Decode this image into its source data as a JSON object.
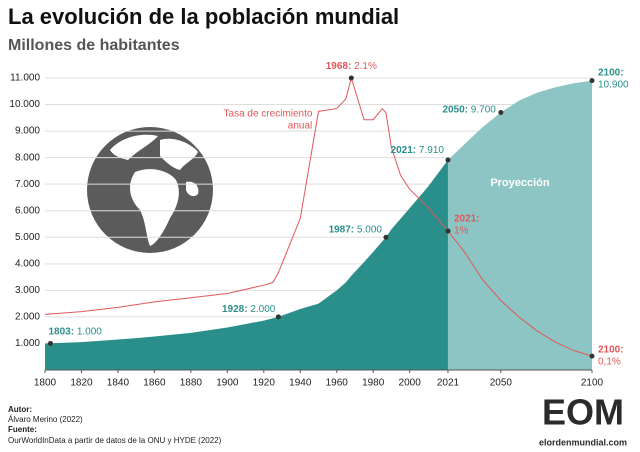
{
  "chart_data": {
    "type": "area",
    "title": "La evolución de la población mundial",
    "subtitle": "Millones de habitantes",
    "x": [
      1800,
      1820,
      1840,
      1850,
      1860,
      1880,
      1900,
      1920,
      1925,
      1928,
      1940,
      1950,
      1960,
      1965,
      1968,
      1975,
      1980,
      1985,
      1987,
      1990,
      1995,
      2000,
      2010,
      2021,
      2030,
      2040,
      2050,
      2060,
      2070,
      2080,
      2090,
      2100
    ],
    "population": {
      "color": "#2a8f8a",
      "values": [
        1000,
        1050,
        1150,
        1200,
        1260,
        1400,
        1600,
        1860,
        1950,
        2000,
        2300,
        2500,
        3000,
        3300,
        3550,
        4070,
        4450,
        4850,
        5000,
        5300,
        5700,
        6100,
        6900,
        7910,
        null,
        null,
        null,
        null,
        null,
        null,
        null,
        null
      ]
    },
    "projection": {
      "name": "Proyección",
      "color": "#8cc5c3",
      "values": [
        null,
        null,
        null,
        null,
        null,
        null,
        null,
        null,
        null,
        null,
        null,
        null,
        null,
        null,
        null,
        null,
        null,
        null,
        null,
        null,
        null,
        null,
        null,
        7910,
        8500,
        9150,
        9700,
        10150,
        10450,
        10650,
        10800,
        10900
      ]
    },
    "growth_rate": {
      "label_lines": [
        "Tasa de crecimiento",
        "anual"
      ],
      "color": "#e0585a",
      "axis": "y2",
      "values": [
        0.4,
        0.42,
        0.45,
        0.47,
        0.49,
        0.52,
        0.55,
        0.61,
        0.63,
        0.7,
        1.09,
        1.86,
        1.88,
        1.95,
        2.1,
        1.8,
        1.8,
        1.88,
        1.85,
        1.6,
        1.4,
        1.3,
        1.17,
        1.0,
        0.85,
        0.65,
        0.5,
        0.38,
        0.28,
        0.2,
        0.14,
        0.1
      ]
    },
    "xlim": [
      1800,
      2100
    ],
    "xticks": [
      1800,
      1820,
      1840,
      1860,
      1880,
      1900,
      1920,
      1940,
      1960,
      1980,
      2000,
      2021,
      2050,
      2100
    ],
    "ylim": [
      0,
      11000
    ],
    "yticks": [
      {
        "value": 1000,
        "label": "1.000"
      },
      {
        "value": 2000,
        "label": "2.000"
      },
      {
        "value": 3000,
        "label": "3.000"
      },
      {
        "value": 4000,
        "label": "4.000"
      },
      {
        "value": 5000,
        "label": "5.000"
      },
      {
        "value": 6000,
        "label": "6.000"
      },
      {
        "value": 7000,
        "label": "7.000"
      },
      {
        "value": 8000,
        "label": "8.000"
      },
      {
        "value": 9000,
        "label": "9.000"
      },
      {
        "value": 10000,
        "label": "10.000"
      },
      {
        "value": 11000,
        "label": "11.000"
      }
    ],
    "y2lim": [
      0,
      2.1
    ],
    "grid": true,
    "population_annotations": [
      {
        "x": 1803,
        "value": 1000,
        "year_label": "1803:",
        "value_label": "1.000"
      },
      {
        "x": 1928,
        "value": 2000,
        "year_label": "1928:",
        "value_label": "2.000"
      },
      {
        "x": 1987,
        "value": 5000,
        "year_label": "1987:",
        "value_label": "5.000"
      },
      {
        "x": 2021,
        "value": 7910,
        "year_label": "2021:",
        "value_label": "7.910"
      },
      {
        "x": 2050,
        "value": 9700,
        "year_label": "2050:",
        "value_label": "9.700"
      },
      {
        "x": 2100,
        "value": 10900,
        "year_label": "2100:",
        "value_label": "10.900"
      }
    ],
    "rate_annotations": [
      {
        "x": 1968,
        "value": 2.1,
        "year_label": "1968:",
        "value_label": "2.1%"
      },
      {
        "x": 2021,
        "value": 1,
        "year_label": "2021:",
        "value_label": "1%"
      },
      {
        "x": 2100,
        "value": 0.1,
        "year_label": "2100:",
        "value_label": "0,1%"
      }
    ]
  },
  "footer": {
    "author_label": "Autor:",
    "author": "Álvaro Merino (2022)",
    "source_label": "Fuente:",
    "source": "OurWorldInData a partir de datos de la ONU y HYDE (2022)"
  },
  "logo": {
    "mark": "EOM",
    "site": "elordenmundial.com"
  }
}
